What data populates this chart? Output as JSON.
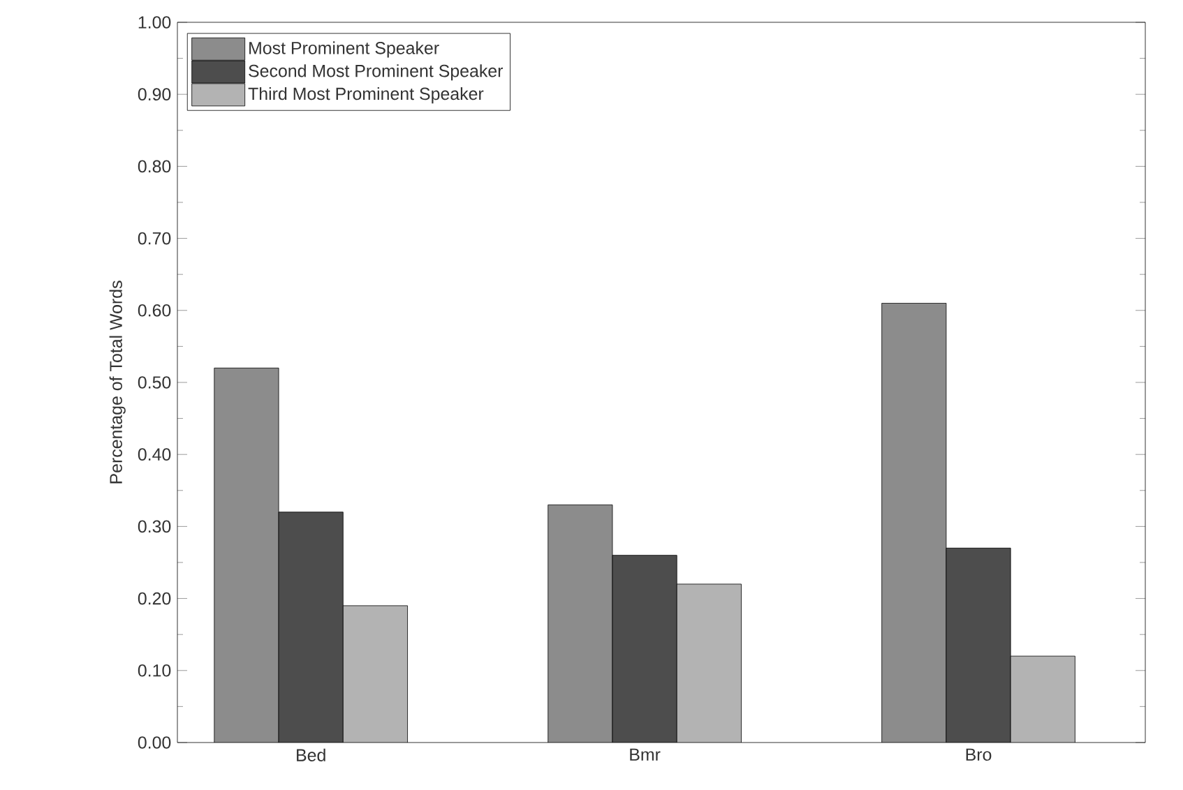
{
  "chart_data": {
    "type": "bar",
    "ylabel": "Percentage of Total Words",
    "categories": [
      "Bed",
      "Bmr",
      "Bro"
    ],
    "series": [
      {
        "name": "Most Prominent Speaker",
        "color": "#8c8c8c",
        "values": [
          0.52,
          0.33,
          0.61
        ]
      },
      {
        "name": "Second Most Prominent Speaker",
        "color": "#4d4d4d",
        "values": [
          0.32,
          0.26,
          0.27
        ]
      },
      {
        "name": "Third Most Prominent Speaker",
        "color": "#b3b3b3",
        "values": [
          0.19,
          0.22,
          0.12
        ]
      }
    ],
    "ylim": [
      0,
      1
    ],
    "yticks": [
      {
        "value": 0,
        "label": "0.00"
      },
      {
        "value": 0.1,
        "label": "0.10"
      },
      {
        "value": 0.2,
        "label": "0.20"
      },
      {
        "value": 0.3,
        "label": "0.30"
      },
      {
        "value": 0.4,
        "label": "0.40"
      },
      {
        "value": 0.5,
        "label": "0.50"
      },
      {
        "value": 0.6,
        "label": "0.60"
      },
      {
        "value": 0.7,
        "label": "0.70"
      },
      {
        "value": 0.8,
        "label": "0.80"
      },
      {
        "value": 0.9,
        "label": "0.90"
      },
      {
        "value": 1,
        "label": "1.00"
      }
    ],
    "grid": false,
    "legend": "top left"
  }
}
